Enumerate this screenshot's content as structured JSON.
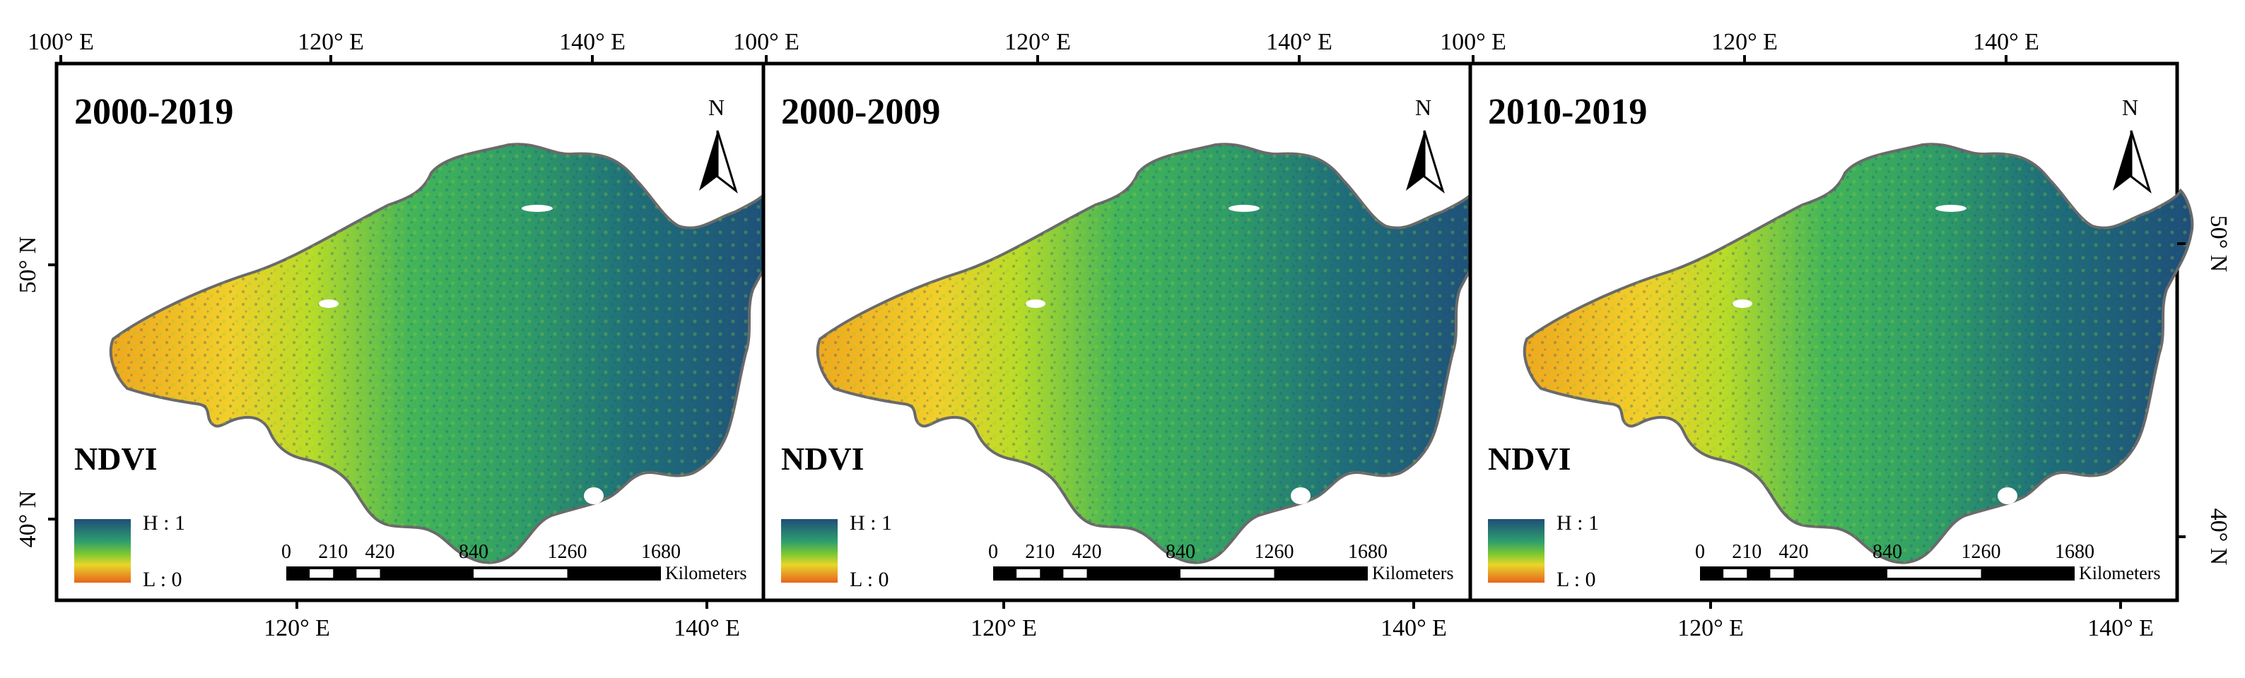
{
  "figure": {
    "panels": [
      {
        "title": "2000-2019",
        "legend_title": "NDVI",
        "legend_high": "H : 1",
        "legend_low": "L : 0"
      },
      {
        "title": "2000-2009",
        "legend_title": "NDVI",
        "legend_high": "H : 1",
        "legend_low": "L : 0"
      },
      {
        "title": "2010-2019",
        "legend_title": "NDVI",
        "legend_high": "H : 1",
        "legend_low": "L : 0"
      }
    ],
    "north_label": "N",
    "top_ticks": [
      [
        "100° E",
        "120° E",
        "140° E"
      ],
      [
        "100° E",
        "120° E",
        "140° E"
      ],
      [
        "100° E",
        "120° E",
        "140° E"
      ]
    ],
    "bottom_ticks": [
      [
        "120° E",
        "140° E"
      ],
      [
        "120° E",
        "140° E"
      ],
      [
        "120° E",
        "140° E"
      ]
    ],
    "left_ticks": [
      "50° N",
      "40° N"
    ],
    "right_ticks": [
      "50° N",
      "40° N"
    ],
    "scalebar": {
      "labels": [
        "0",
        "210",
        "420",
        "840",
        "1260",
        "1680"
      ],
      "unit": "Kilometers"
    },
    "colors": {
      "high": "#1f4e79",
      "mid": "#35b05a",
      "midlight": "#b9dc28",
      "low_mid": "#f2d22a",
      "low": "#e8641e",
      "frame": "#000000"
    }
  }
}
